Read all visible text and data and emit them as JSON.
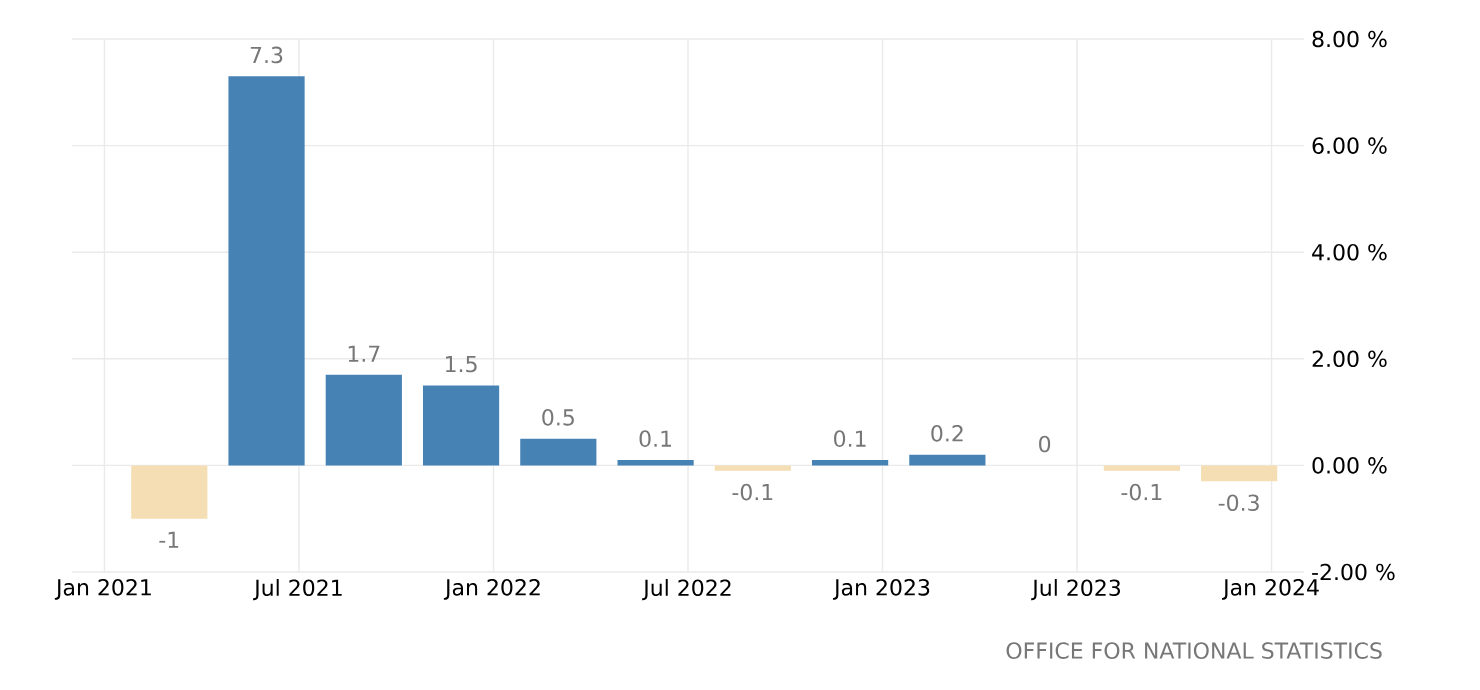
{
  "chart_data": {
    "type": "bar",
    "x": [
      "2021-03",
      "2021-06",
      "2021-09",
      "2021-12",
      "2022-03",
      "2022-06",
      "2022-09",
      "2022-12",
      "2023-03",
      "2023-06",
      "2023-09",
      "2023-12"
    ],
    "values": [
      -1,
      7.3,
      1.7,
      1.5,
      0.5,
      0.1,
      -0.1,
      0.1,
      0.2,
      0,
      -0.1,
      -0.3
    ],
    "colors": [
      "#f5deb3",
      "#4682b4",
      "#4682b4",
      "#4682b4",
      "#4682b4",
      "#4682b4",
      "#f5deb3",
      "#4682b4",
      "#4682b4",
      "#4682b4",
      "#f5deb3",
      "#f5deb3"
    ],
    "data_labels": true,
    "xlim": [
      "2020-12",
      "2024-02"
    ],
    "xticks": [
      {
        "value": "2021-01",
        "label": "Jan 2021"
      },
      {
        "value": "2021-07",
        "label": "Jul 2021"
      },
      {
        "value": "2022-01",
        "label": "Jan 2022"
      },
      {
        "value": "2022-07",
        "label": "Jul 2022"
      },
      {
        "value": "2023-01",
        "label": "Jan 2023"
      },
      {
        "value": "2023-07",
        "label": "Jul 2023"
      },
      {
        "value": "2024-01",
        "label": "Jan 2024"
      }
    ],
    "ylim": [
      -2,
      8
    ],
    "yticks": [
      {
        "value": -2,
        "label": "-2.00 %"
      },
      {
        "value": 0,
        "label": "0.00 %"
      },
      {
        "value": 2,
        "label": "2.00 %"
      },
      {
        "value": 4,
        "label": "4.00 %"
      },
      {
        "value": 6,
        "label": "6.00 %"
      },
      {
        "value": 8,
        "label": "8.00 %"
      }
    ],
    "grid": true,
    "annotations": [
      "OFFICE FOR NATIONAL STATISTICS"
    ]
  }
}
